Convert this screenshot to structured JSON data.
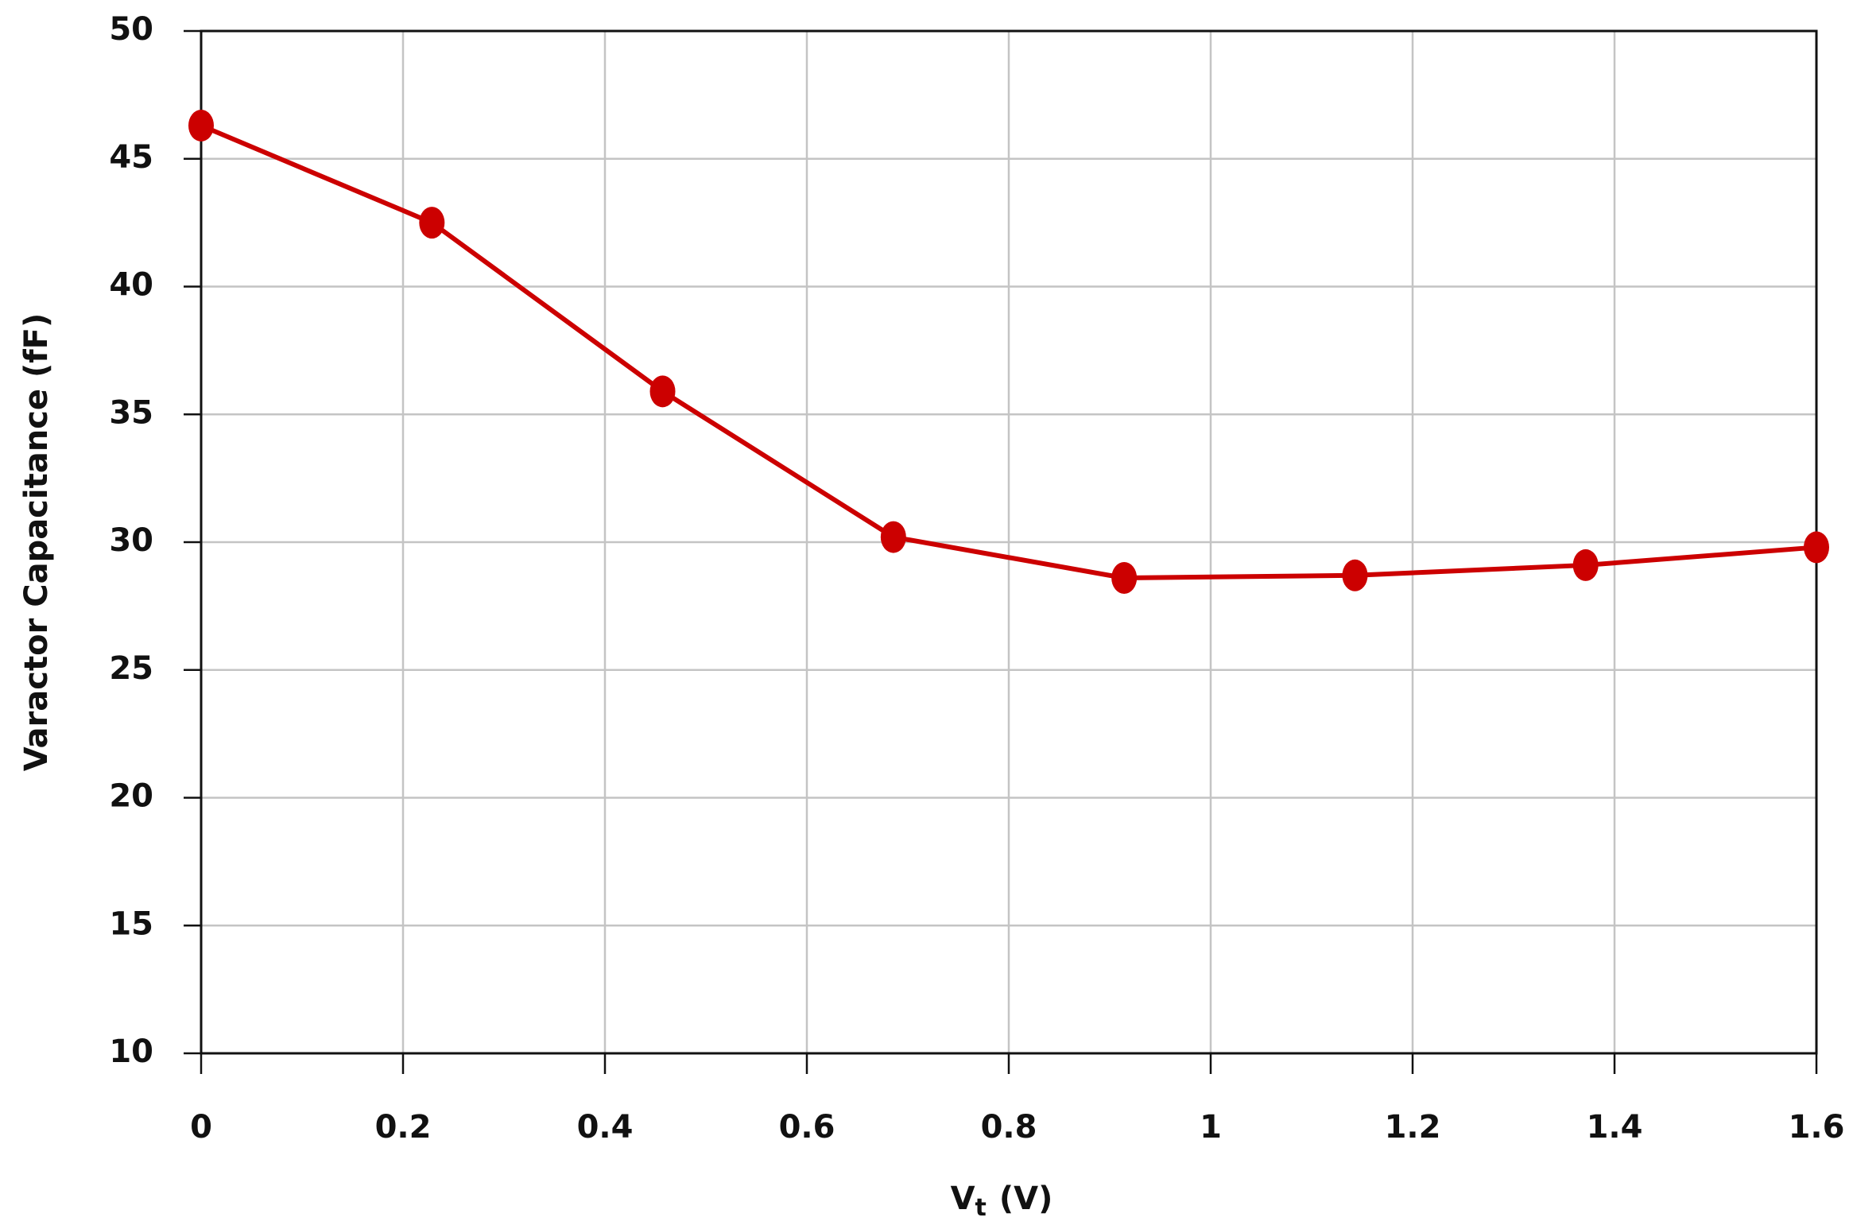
{
  "chart_data": {
    "type": "line",
    "ylabel": "Varactor Capacitance (fF)",
    "xlabel": "V",
    "xlabel_subscript": "t",
    "xlabel_unit": "(V)",
    "x": [
      0,
      0.2286,
      0.4571,
      0.6857,
      0.9143,
      1.1429,
      1.3714,
      1.6
    ],
    "series": [
      {
        "name": "Varactor Capacitance",
        "color": "#cc0000",
        "values": [
          46.3,
          42.5,
          35.9,
          30.2,
          28.6,
          28.7,
          29.1,
          29.8
        ]
      }
    ],
    "xlim": [
      0,
      1.6
    ],
    "xticks": [
      0,
      0.2,
      0.4,
      0.6,
      0.8,
      1,
      1.2,
      1.4,
      1.6
    ],
    "ylim": [
      10,
      50
    ],
    "yticks": [
      10,
      15,
      20,
      25,
      30,
      35,
      40,
      45,
      50
    ],
    "grid": true,
    "markers": true
  }
}
